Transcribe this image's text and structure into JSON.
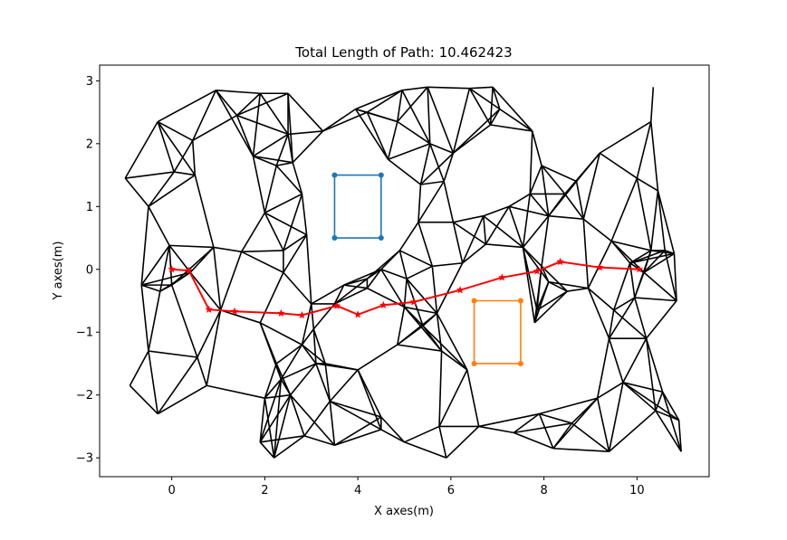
{
  "chart_data": {
    "type": "line",
    "title": "Total Length of Path: 10.462423",
    "xlabel": "X axes(m)",
    "ylabel": "Y axes(m)",
    "xlim": [
      -1.55,
      11.55
    ],
    "ylim": [
      -3.3,
      3.25
    ],
    "xticks": [
      0,
      2,
      4,
      6,
      8,
      10
    ],
    "yticks": [
      -3,
      -2,
      -1,
      0,
      1,
      2,
      3
    ],
    "grid": false,
    "legend": "none",
    "colors": {
      "mesh": "#000000",
      "path": "#ff0000",
      "rect1": "#1f77b4",
      "rect2": "#ff7f0e"
    },
    "path": {
      "x": [
        0.0,
        0.37,
        0.8,
        1.35,
        2.35,
        2.8,
        3.55,
        4.0,
        4.55,
        5.2,
        6.2,
        7.1,
        7.85,
        8.35,
        9.2,
        10.05
      ],
      "y": [
        0.0,
        -0.02,
        -0.64,
        -0.67,
        -0.7,
        -0.73,
        -0.58,
        -0.72,
        -0.57,
        -0.52,
        -0.33,
        -0.13,
        -0.03,
        0.12,
        0.03,
        0.0
      ]
    },
    "rect1": {
      "x": [
        3.5,
        4.5,
        4.5,
        3.5,
        3.5
      ],
      "y": [
        0.5,
        0.5,
        1.5,
        1.5,
        0.5
      ]
    },
    "rect2": {
      "x": [
        6.5,
        7.5,
        7.5,
        6.5,
        6.5
      ],
      "y": [
        -1.5,
        -1.5,
        -0.5,
        -0.5,
        -1.5
      ]
    },
    "mesh_nodes": [
      [
        -1.0,
        1.45
      ],
      [
        -0.3,
        2.35
      ],
      [
        -0.5,
        1.0
      ],
      [
        0.5,
        1.5
      ],
      [
        0.05,
        1.55
      ],
      [
        0.45,
        2.05
      ],
      [
        0.95,
        2.85
      ],
      [
        1.9,
        2.8
      ],
      [
        2.5,
        2.8
      ],
      [
        1.4,
        2.45
      ],
      [
        2.5,
        2.15
      ],
      [
        1.75,
        1.8
      ],
      [
        2.25,
        1.65
      ],
      [
        2.6,
        1.7
      ],
      [
        3.25,
        2.2
      ],
      [
        2.8,
        1.2
      ],
      [
        2.0,
        0.9
      ],
      [
        2.4,
        0.3
      ],
      [
        2.9,
        0.55
      ],
      [
        1.5,
        0.28
      ],
      [
        0.9,
        0.35
      ],
      [
        -0.05,
        0.38
      ],
      [
        -0.65,
        -0.25
      ],
      [
        -0.25,
        -0.35
      ],
      [
        0.0,
        -0.25
      ],
      [
        0.4,
        -0.05
      ],
      [
        1.9,
        -0.85
      ],
      [
        2.25,
        -1.5
      ],
      [
        3.1,
        -1.5
      ],
      [
        2.4,
        -0.05
      ],
      [
        3.0,
        -0.55
      ],
      [
        3.5,
        -0.55
      ],
      [
        2.8,
        -1.2
      ],
      [
        2.0,
        -2.05
      ],
      [
        2.55,
        -2.0
      ],
      [
        1.9,
        -2.75
      ],
      [
        2.2,
        -3.0
      ],
      [
        2.85,
        -2.65
      ],
      [
        3.4,
        -2.1
      ],
      [
        3.5,
        -2.8
      ],
      [
        1.05,
        -0.65
      ],
      [
        0.55,
        -1.4
      ],
      [
        0.75,
        -1.85
      ],
      [
        -0.3,
        -2.3
      ],
      [
        -0.9,
        -1.85
      ],
      [
        -0.5,
        -1.3
      ],
      [
        3.7,
        -0.25
      ],
      [
        4.2,
        -0.15
      ],
      [
        4.5,
        0.0
      ],
      [
        4.9,
        0.3
      ],
      [
        5.3,
        0.75
      ],
      [
        5.35,
        1.35
      ],
      [
        5.85,
        1.4
      ],
      [
        6.05,
        0.75
      ],
      [
        6.7,
        0.85
      ],
      [
        7.25,
        1.0
      ],
      [
        7.7,
        1.2
      ],
      [
        8.1,
        0.85
      ],
      [
        8.45,
        1.2
      ],
      [
        8.7,
        1.4
      ],
      [
        9.2,
        1.85
      ],
      [
        8.85,
        0.8
      ],
      [
        9.45,
        0.45
      ],
      [
        10.0,
        1.45
      ],
      [
        10.45,
        1.25
      ],
      [
        10.6,
        0.3
      ],
      [
        10.85,
        -0.5
      ],
      [
        10.15,
        -0.05
      ],
      [
        9.85,
        0.1
      ],
      [
        9.5,
        -0.65
      ],
      [
        9.4,
        -1.1
      ],
      [
        10.2,
        -1.1
      ],
      [
        9.15,
        -2.05
      ],
      [
        9.7,
        -1.8
      ],
      [
        10.55,
        -1.95
      ],
      [
        10.4,
        -2.25
      ],
      [
        10.9,
        -2.4
      ],
      [
        10.95,
        -2.9
      ],
      [
        9.4,
        -2.9
      ],
      [
        8.6,
        -2.45
      ],
      [
        7.9,
        -2.3
      ],
      [
        8.2,
        -2.85
      ],
      [
        7.35,
        -2.6
      ],
      [
        6.6,
        -2.5
      ],
      [
        6.35,
        -1.6
      ],
      [
        5.75,
        -2.5
      ],
      [
        5.9,
        -3.0
      ],
      [
        5.0,
        -2.75
      ],
      [
        4.5,
        -2.55
      ],
      [
        4.5,
        -2.35
      ],
      [
        4.0,
        -1.6
      ],
      [
        4.85,
        -1.2
      ],
      [
        5.4,
        -0.9
      ],
      [
        5.8,
        -1.3
      ],
      [
        5.7,
        -0.7
      ],
      [
        5.0,
        -0.6
      ],
      [
        4.2,
        -0.3
      ],
      [
        5.05,
        -0.15
      ],
      [
        5.6,
        0.05
      ],
      [
        6.25,
        0.1
      ],
      [
        6.75,
        0.4
      ],
      [
        7.55,
        0.35
      ],
      [
        7.95,
        0.05
      ],
      [
        8.1,
        -0.2
      ],
      [
        7.85,
        -0.65
      ],
      [
        7.8,
        -0.85
      ],
      [
        8.5,
        -0.35
      ],
      [
        8.95,
        -0.3
      ],
      [
        4.95,
        2.85
      ],
      [
        5.5,
        2.9
      ],
      [
        6.4,
        2.88
      ],
      [
        6.9,
        2.9
      ],
      [
        7.05,
        2.55
      ],
      [
        7.75,
        2.2
      ],
      [
        7.95,
        1.65
      ],
      [
        6.85,
        2.3
      ],
      [
        6.05,
        1.85
      ],
      [
        5.55,
        2.0
      ],
      [
        4.85,
        2.35
      ],
      [
        4.2,
        2.5
      ],
      [
        4.65,
        1.75
      ],
      [
        3.95,
        2.55
      ],
      [
        10.35,
        2.9
      ],
      [
        10.3,
        2.35
      ],
      [
        10.8,
        0.25
      ],
      [
        10.3,
        0.3
      ],
      [
        9.95,
        -0.45
      ],
      [
        3.3,
        -1.5
      ],
      [
        2.35,
        -1.75
      ],
      [
        3.05,
        -0.95
      ]
    ]
  }
}
